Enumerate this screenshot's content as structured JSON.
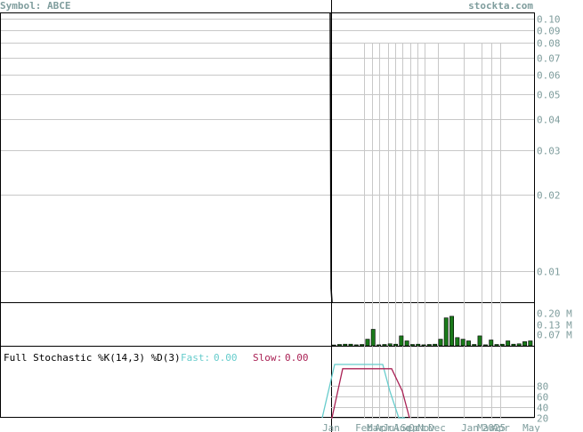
{
  "header": {
    "symbol": "Symbol: ABCE",
    "site": "stockta.com"
  },
  "colors": {
    "frame": "#000000",
    "grid": "#c8c8c8",
    "axis_text": "#7f9d9d",
    "volume_bar": "#1a7a1a",
    "fast_line": "#66cccc",
    "slow_line": "#aa2255",
    "price_line": "#000000"
  },
  "indicator": {
    "title": "Full Stochastic %K(14,3) %D(3)",
    "fast_label": "Fast:",
    "fast_value": "0.00",
    "slow_label": "Slow:",
    "slow_value": "0.00"
  },
  "chart_data": [
    {
      "type": "line",
      "panel": "price",
      "scale": "log",
      "ylim": [
        0.0075,
        0.105
      ],
      "y_ticks": [
        "0.10",
        "0.09",
        "0.08",
        "0.07",
        "0.06",
        "0.05",
        "0.04",
        "0.03",
        "0.02",
        "0.01"
      ],
      "y_tick_values": [
        0.1,
        0.09,
        0.08,
        0.07,
        0.06,
        0.05,
        0.04,
        0.03,
        0.02,
        0.01
      ],
      "x_labels": [
        "Jan",
        "Feb",
        "Mar",
        "Apr",
        "Jul",
        "Aug",
        "Sep",
        "Oct",
        "Nov",
        "Dec",
        "Jan",
        "Mar",
        "2025",
        "Apr",
        "May"
      ],
      "grid": true,
      "series": [
        {
          "values": [
            0.105,
            0.0085,
            0.0075
          ]
        }
      ]
    },
    {
      "type": "bar",
      "panel": "volume",
      "y_ticks": [
        "0.20 M",
        "0.13 M",
        "0.07 M"
      ],
      "y_tick_values": [
        0.2,
        0.13,
        0.07
      ],
      "ylim": [
        0,
        0.26
      ],
      "values": [
        0.005,
        0.008,
        0.01,
        0.01,
        0.006,
        0.008,
        0.04,
        0.1,
        0.006,
        0.008,
        0.012,
        0.01,
        0.06,
        0.03,
        0.008,
        0.01,
        0.006,
        0.008,
        0.01,
        0.04,
        0.17,
        0.18,
        0.05,
        0.04,
        0.03,
        0.008,
        0.06,
        0.006,
        0.035,
        0.008,
        0.01,
        0.03,
        0.01,
        0.012,
        0.025,
        0.03
      ]
    },
    {
      "type": "line",
      "panel": "stochastic",
      "y_ticks": [
        "80",
        "60",
        "40",
        "20"
      ],
      "y_tick_values": [
        80,
        60,
        40,
        20
      ],
      "ylim": [
        0,
        100
      ],
      "series": [
        {
          "name": "Fast",
          "values": [
            0,
            100,
            100,
            100,
            100,
            100,
            50,
            0,
            0
          ]
        },
        {
          "name": "Slow",
          "values": [
            0,
            0,
            92,
            92,
            92,
            92,
            92,
            50,
            0
          ]
        }
      ]
    }
  ]
}
